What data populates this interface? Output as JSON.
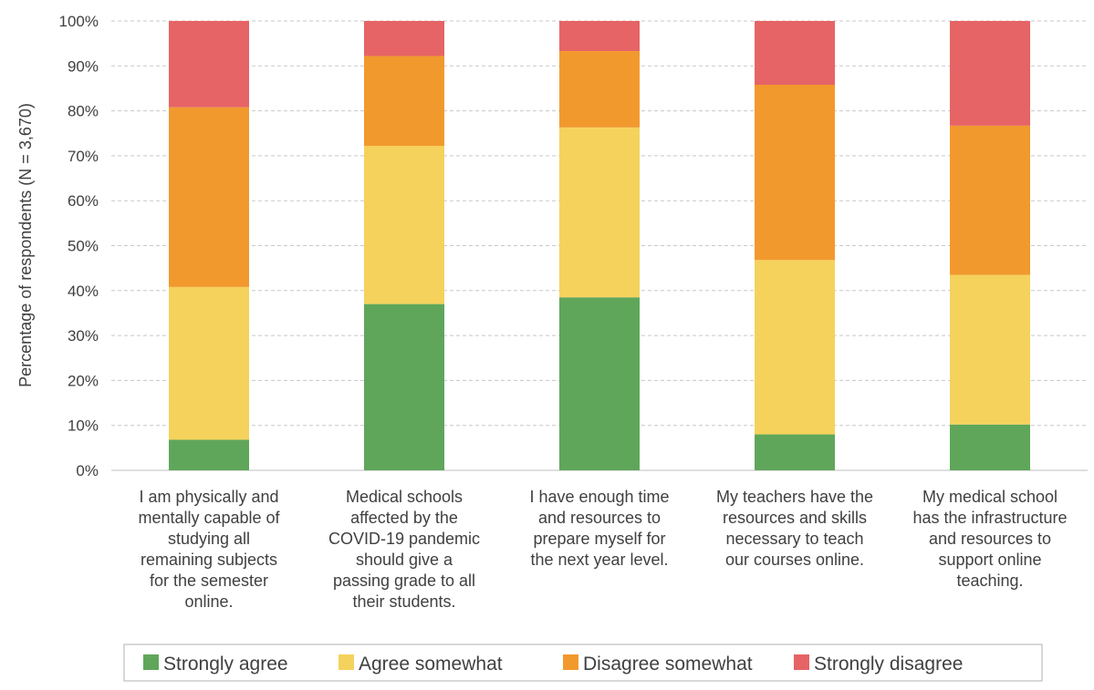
{
  "chart_data": {
    "type": "bar",
    "stacked": true,
    "ylabel": "Percentage of respondents (N = 3,670)",
    "xlabel": "",
    "ylim": [
      0,
      100
    ],
    "yticks": [
      "0%",
      "10%",
      "20%",
      "30%",
      "40%",
      "50%",
      "60%",
      "70%",
      "80%",
      "90%",
      "100%"
    ],
    "grid": true,
    "legend_position": "bottom",
    "categories": [
      [
        "I am physically and",
        "mentally capable of",
        "studying all",
        "remaining subjects",
        "for the semester",
        "online."
      ],
      [
        "Medical schools",
        "affected by the",
        "COVID-19 pandemic",
        "should give a",
        "passing grade to all",
        "their students."
      ],
      [
        "I have enough time",
        "and resources to",
        "prepare myself for",
        "the next year level."
      ],
      [
        "My teachers have the",
        "resources and skills",
        "necessary to teach",
        "our courses online."
      ],
      [
        "My medical school",
        "has the infrastructure",
        "and resources to",
        "support online",
        "teaching."
      ]
    ],
    "series": [
      {
        "name": "Strongly agree",
        "color": "#5fa65a",
        "values": [
          6.8,
          37.0,
          38.5,
          8.0,
          10.2
        ]
      },
      {
        "name": "Agree somewhat",
        "color": "#f5d25c",
        "values": [
          34.0,
          35.2,
          37.8,
          38.8,
          33.3
        ]
      },
      {
        "name": "Disagree somewhat",
        "color": "#f2992e",
        "values": [
          40.0,
          20.0,
          17.0,
          39.0,
          33.2
        ]
      },
      {
        "name": "Strongly disagree",
        "color": "#e66465",
        "values": [
          19.2,
          7.8,
          6.7,
          14.2,
          23.3
        ]
      }
    ]
  }
}
